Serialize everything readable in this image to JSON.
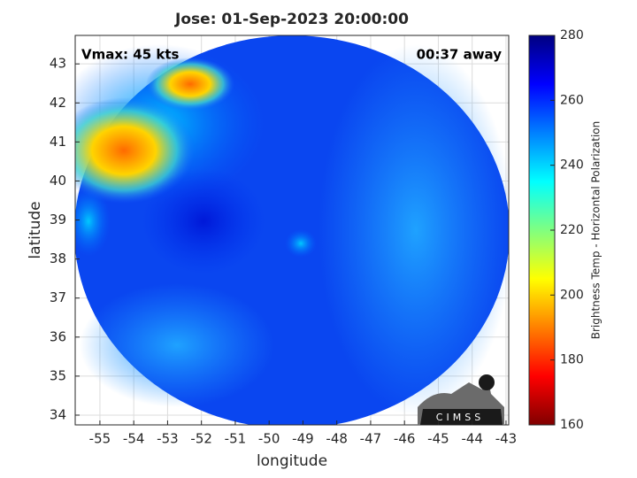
{
  "chart_data": {
    "type": "image",
    "title": "Jose: 01-Sep-2023 20:00:00",
    "annotations": [
      "Vmax: 45 kts",
      "00:37 away"
    ],
    "x_label": "longitude",
    "y_label": "latitude",
    "xlim": [
      -55.73,
      -42.92
    ],
    "xticks": [
      -55,
      -54,
      -53,
      -52,
      -51,
      -50,
      -49,
      -48,
      -47,
      -46,
      -45,
      -44,
      -43
    ],
    "ylim": [
      33.75,
      43.73
    ],
    "yticks": [
      34,
      35,
      36,
      37,
      38,
      39,
      40,
      41,
      42,
      43
    ],
    "grid": true,
    "colorbar": {
      "label": "Brightness Temp - Horizontal Polarization",
      "colormap": "jet",
      "lim": [
        160,
        280
      ],
      "ticks": [
        160,
        180,
        200,
        220,
        240,
        260,
        280
      ]
    },
    "logo": "CIMSS"
  }
}
